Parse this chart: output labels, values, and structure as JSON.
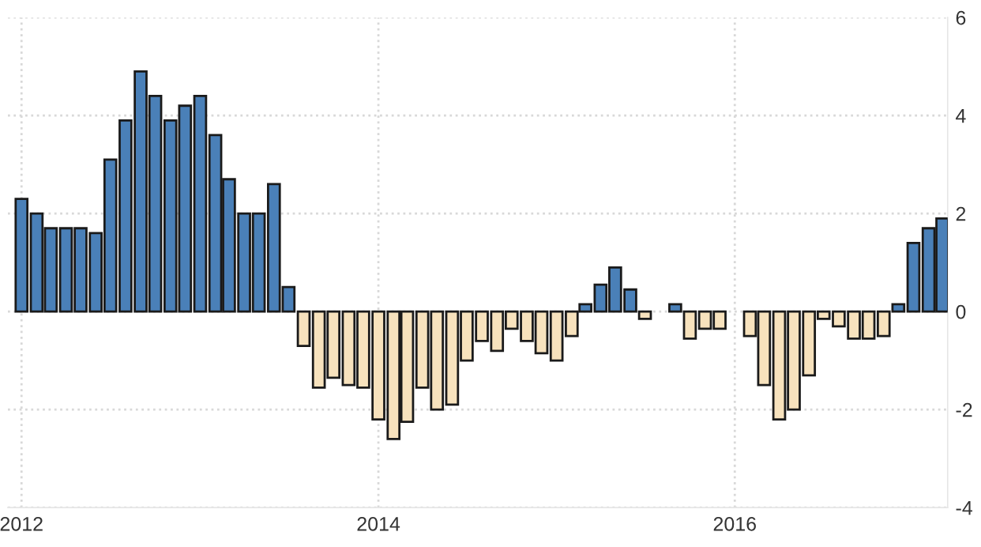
{
  "chart_data": {
    "type": "bar",
    "x": [
      "2012-01",
      "2012-02",
      "2012-03",
      "2012-04",
      "2012-05",
      "2012-06",
      "2012-07",
      "2012-08",
      "2012-09",
      "2012-10",
      "2012-11",
      "2012-12",
      "2013-01",
      "2013-02",
      "2013-03",
      "2013-04",
      "2013-05",
      "2013-06",
      "2013-07",
      "2013-08",
      "2013-09",
      "2013-10",
      "2013-11",
      "2013-12",
      "2014-01",
      "2014-02",
      "2014-03",
      "2014-04",
      "2014-05",
      "2014-06",
      "2014-07",
      "2014-08",
      "2014-09",
      "2014-10",
      "2014-11",
      "2014-12",
      "2015-01",
      "2015-02",
      "2015-03",
      "2015-04",
      "2015-05",
      "2015-06",
      "2015-07",
      "2015-08",
      "2015-09",
      "2015-10",
      "2015-11",
      "2015-12",
      "2016-01",
      "2016-02",
      "2016-03",
      "2016-04",
      "2016-05",
      "2016-06",
      "2016-07",
      "2016-08",
      "2016-09",
      "2016-10",
      "2016-11",
      "2016-12",
      "2017-01",
      "2017-02",
      "2017-03"
    ],
    "values": [
      2.3,
      2.0,
      1.7,
      1.7,
      1.7,
      1.6,
      3.1,
      3.9,
      4.9,
      4.4,
      3.9,
      4.2,
      4.4,
      3.6,
      2.7,
      2.0,
      2.0,
      2.6,
      0.5,
      -0.7,
      -1.55,
      -1.35,
      -1.5,
      -1.55,
      -2.2,
      -2.6,
      -2.25,
      -1.55,
      -2.0,
      -1.9,
      -1.0,
      -0.6,
      -0.8,
      -0.35,
      -0.6,
      -0.85,
      -1.0,
      -0.5,
      0.15,
      0.55,
      0.9,
      0.45,
      -0.15,
      null,
      0.15,
      -0.55,
      -0.35,
      -0.35,
      null,
      -0.5,
      -1.5,
      -2.2,
      -2.0,
      -1.3,
      -0.15,
      -0.3,
      -0.55,
      -0.55,
      -0.5,
      0.15,
      1.4,
      1.7,
      1.9
    ],
    "colors": [
      "#4a80b8",
      "#4a80b8",
      "#4a80b8",
      "#4a80b8",
      "#4a80b8",
      "#4a80b8",
      "#4a80b8",
      "#4a80b8",
      "#4a80b8",
      "#4a80b8",
      "#4a80b8",
      "#4a80b8",
      "#4a80b8",
      "#4a80b8",
      "#4a80b8",
      "#4a80b8",
      "#4a80b8",
      "#4a80b8",
      "#4a80b8",
      "#f7e2bd",
      "#f7e2bd",
      "#f7e2bd",
      "#f7e2bd",
      "#f7e2bd",
      "#f7e2bd",
      "#f7e2bd",
      "#f7e2bd",
      "#f7e2bd",
      "#f7e2bd",
      "#f7e2bd",
      "#f7e2bd",
      "#f7e2bd",
      "#f7e2bd",
      "#f7e2bd",
      "#f7e2bd",
      "#f7e2bd",
      "#f7e2bd",
      "#f7e2bd",
      "#4a80b8",
      "#4a80b8",
      "#4a80b8",
      "#4a80b8",
      "#f7e2bd",
      "#f7e2bd",
      "#4a80b8",
      "#f7e2bd",
      "#f7e2bd",
      "#f7e2bd",
      "#f7e2bd",
      "#f7e2bd",
      "#f7e2bd",
      "#f7e2bd",
      "#f7e2bd",
      "#f7e2bd",
      "#f7e2bd",
      "#f7e2bd",
      "#f7e2bd",
      "#f7e2bd",
      "#f7e2bd",
      "#4a80b8",
      "#4a80b8",
      "#4a80b8",
      "#4a80b8"
    ],
    "xlim": [
      "2011-12-04",
      "2017-03-12"
    ],
    "xticks": [
      "2012",
      "2014",
      "2016"
    ],
    "ylim": [
      -4,
      6
    ],
    "yticks": [
      -4,
      -2,
      0,
      2,
      4,
      6
    ],
    "grid": true
  }
}
